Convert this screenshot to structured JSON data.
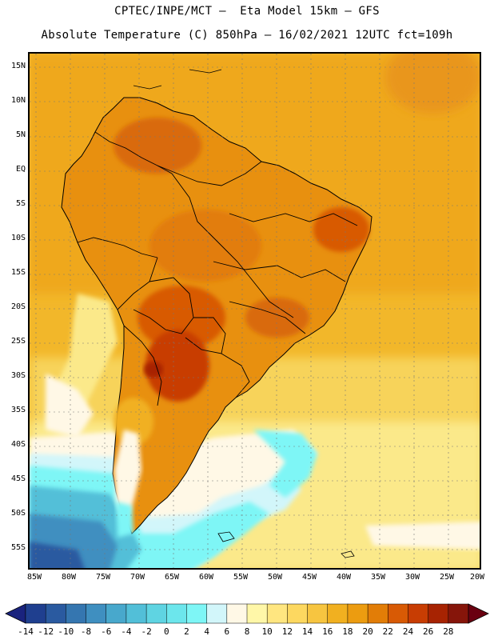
{
  "header": {
    "line1": "CPTEC/INPE/MCT –  Eta Model 15km – GFS",
    "line2": "Absolute Temperature (C) 850hPa – 16/02/2021 12UTC fct=109h"
  },
  "map": {
    "lat_labels": [
      "15N",
      "10N",
      "5N",
      "EQ",
      "5S",
      "10S",
      "15S",
      "20S",
      "25S",
      "30S",
      "35S",
      "40S",
      "45S",
      "50S",
      "55S"
    ],
    "lon_labels": [
      "85W",
      "80W",
      "75W",
      "70W",
      "65W",
      "60W",
      "55W",
      "50W",
      "45W",
      "40W",
      "35W",
      "30W",
      "25W",
      "20W"
    ]
  },
  "colorbar": {
    "labels": [
      "-14",
      "-12",
      "-10",
      "-8",
      "-6",
      "-4",
      "-2",
      "0",
      "2",
      "4",
      "6",
      "8",
      "10",
      "12",
      "14",
      "16",
      "18",
      "20",
      "22",
      "24",
      "26",
      "28"
    ],
    "colors": [
      "#1f3f8f",
      "#2a5aa0",
      "#3576b0",
      "#3f8fc0",
      "#48a8cc",
      "#52bfd8",
      "#5fd4e2",
      "#6ce6ec",
      "#7ef6f6",
      "#d2f6fa",
      "#fff8e6",
      "#fff7a8",
      "#ffe680",
      "#fdd860",
      "#f7c540",
      "#f1b020",
      "#ec9c10",
      "#e27d07",
      "#d85a05",
      "#c83d03",
      "#a72302",
      "#86150a"
    ],
    "low_arrow_color": "#1a237e",
    "high_arrow_color": "#6a0010"
  }
}
